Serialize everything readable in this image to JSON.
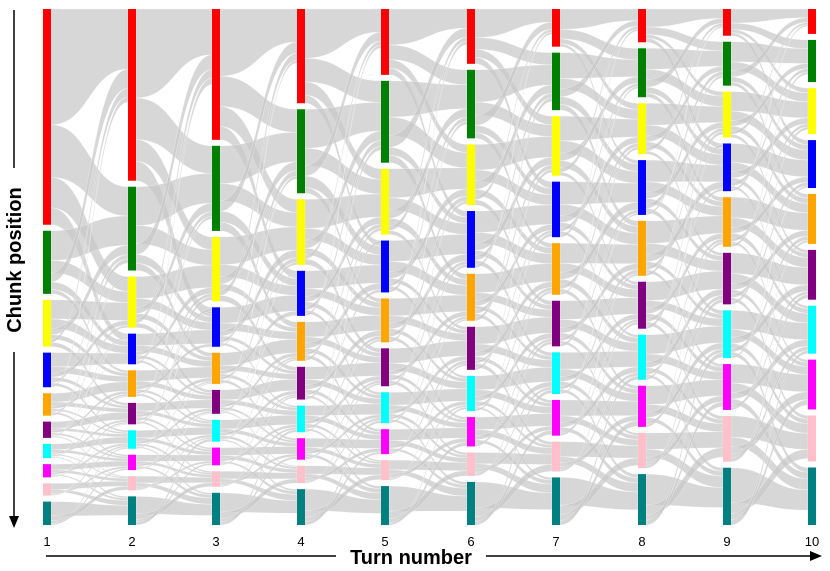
{
  "figure": {
    "xlabel": "Turn number",
    "ylabel": "Chunk position"
  },
  "chart_data": {
    "type": "sankey",
    "xlabel": "Turn number",
    "ylabel": "Chunk position",
    "turns": [
      "1",
      "2",
      "3",
      "4",
      "5",
      "6",
      "7",
      "8",
      "9",
      "10"
    ],
    "chunk_colors": [
      "#ff0000",
      "#008000",
      "#ffff00",
      "#0000ff",
      "#ffa500",
      "#800080",
      "#00ffff",
      "#ff00ff",
      "#ffc0cb",
      "#008080"
    ],
    "chunk_sizes_by_turn": [
      [
        212,
        62,
        46,
        34,
        22,
        16,
        14,
        13,
        12,
        23
      ],
      [
        168,
        82,
        50,
        30,
        26,
        21,
        18,
        15,
        14,
        28
      ],
      [
        126,
        82,
        62,
        38,
        30,
        23,
        21,
        17,
        15,
        31
      ],
      [
        92,
        82,
        64,
        44,
        38,
        32,
        26,
        21,
        17,
        35
      ],
      [
        66,
        82,
        66,
        52,
        44,
        38,
        31,
        25,
        20,
        39
      ],
      [
        56,
        70,
        62,
        58,
        48,
        44,
        36,
        30,
        24,
        44
      ],
      [
        38,
        58,
        60,
        56,
        52,
        46,
        42,
        36,
        30,
        48
      ],
      [
        34,
        50,
        52,
        56,
        56,
        48,
        46,
        42,
        36,
        52
      ],
      [
        28,
        46,
        48,
        50,
        52,
        54,
        50,
        48,
        48,
        60
      ],
      [
        26,
        44,
        48,
        50,
        52,
        52,
        50,
        52,
        48,
        60
      ]
    ]
  }
}
